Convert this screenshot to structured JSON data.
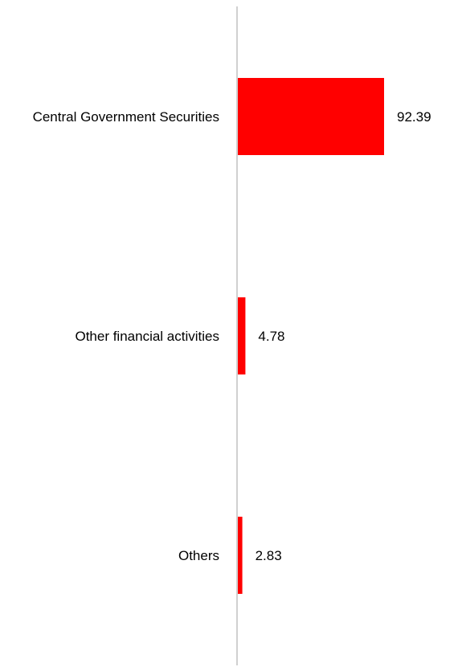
{
  "chart_data": {
    "type": "bar",
    "orientation": "horizontal",
    "categories": [
      "Central Government Securities",
      "Other financial activities",
      "Others"
    ],
    "values": [
      92.39,
      4.78,
      2.83
    ],
    "value_labels": [
      "92.39",
      "4.78",
      "2.83"
    ],
    "xlim": [
      0,
      100
    ],
    "grid": false,
    "legend": "none",
    "bar_color": "#ff0000",
    "axis_color": "#d0d0d0"
  }
}
